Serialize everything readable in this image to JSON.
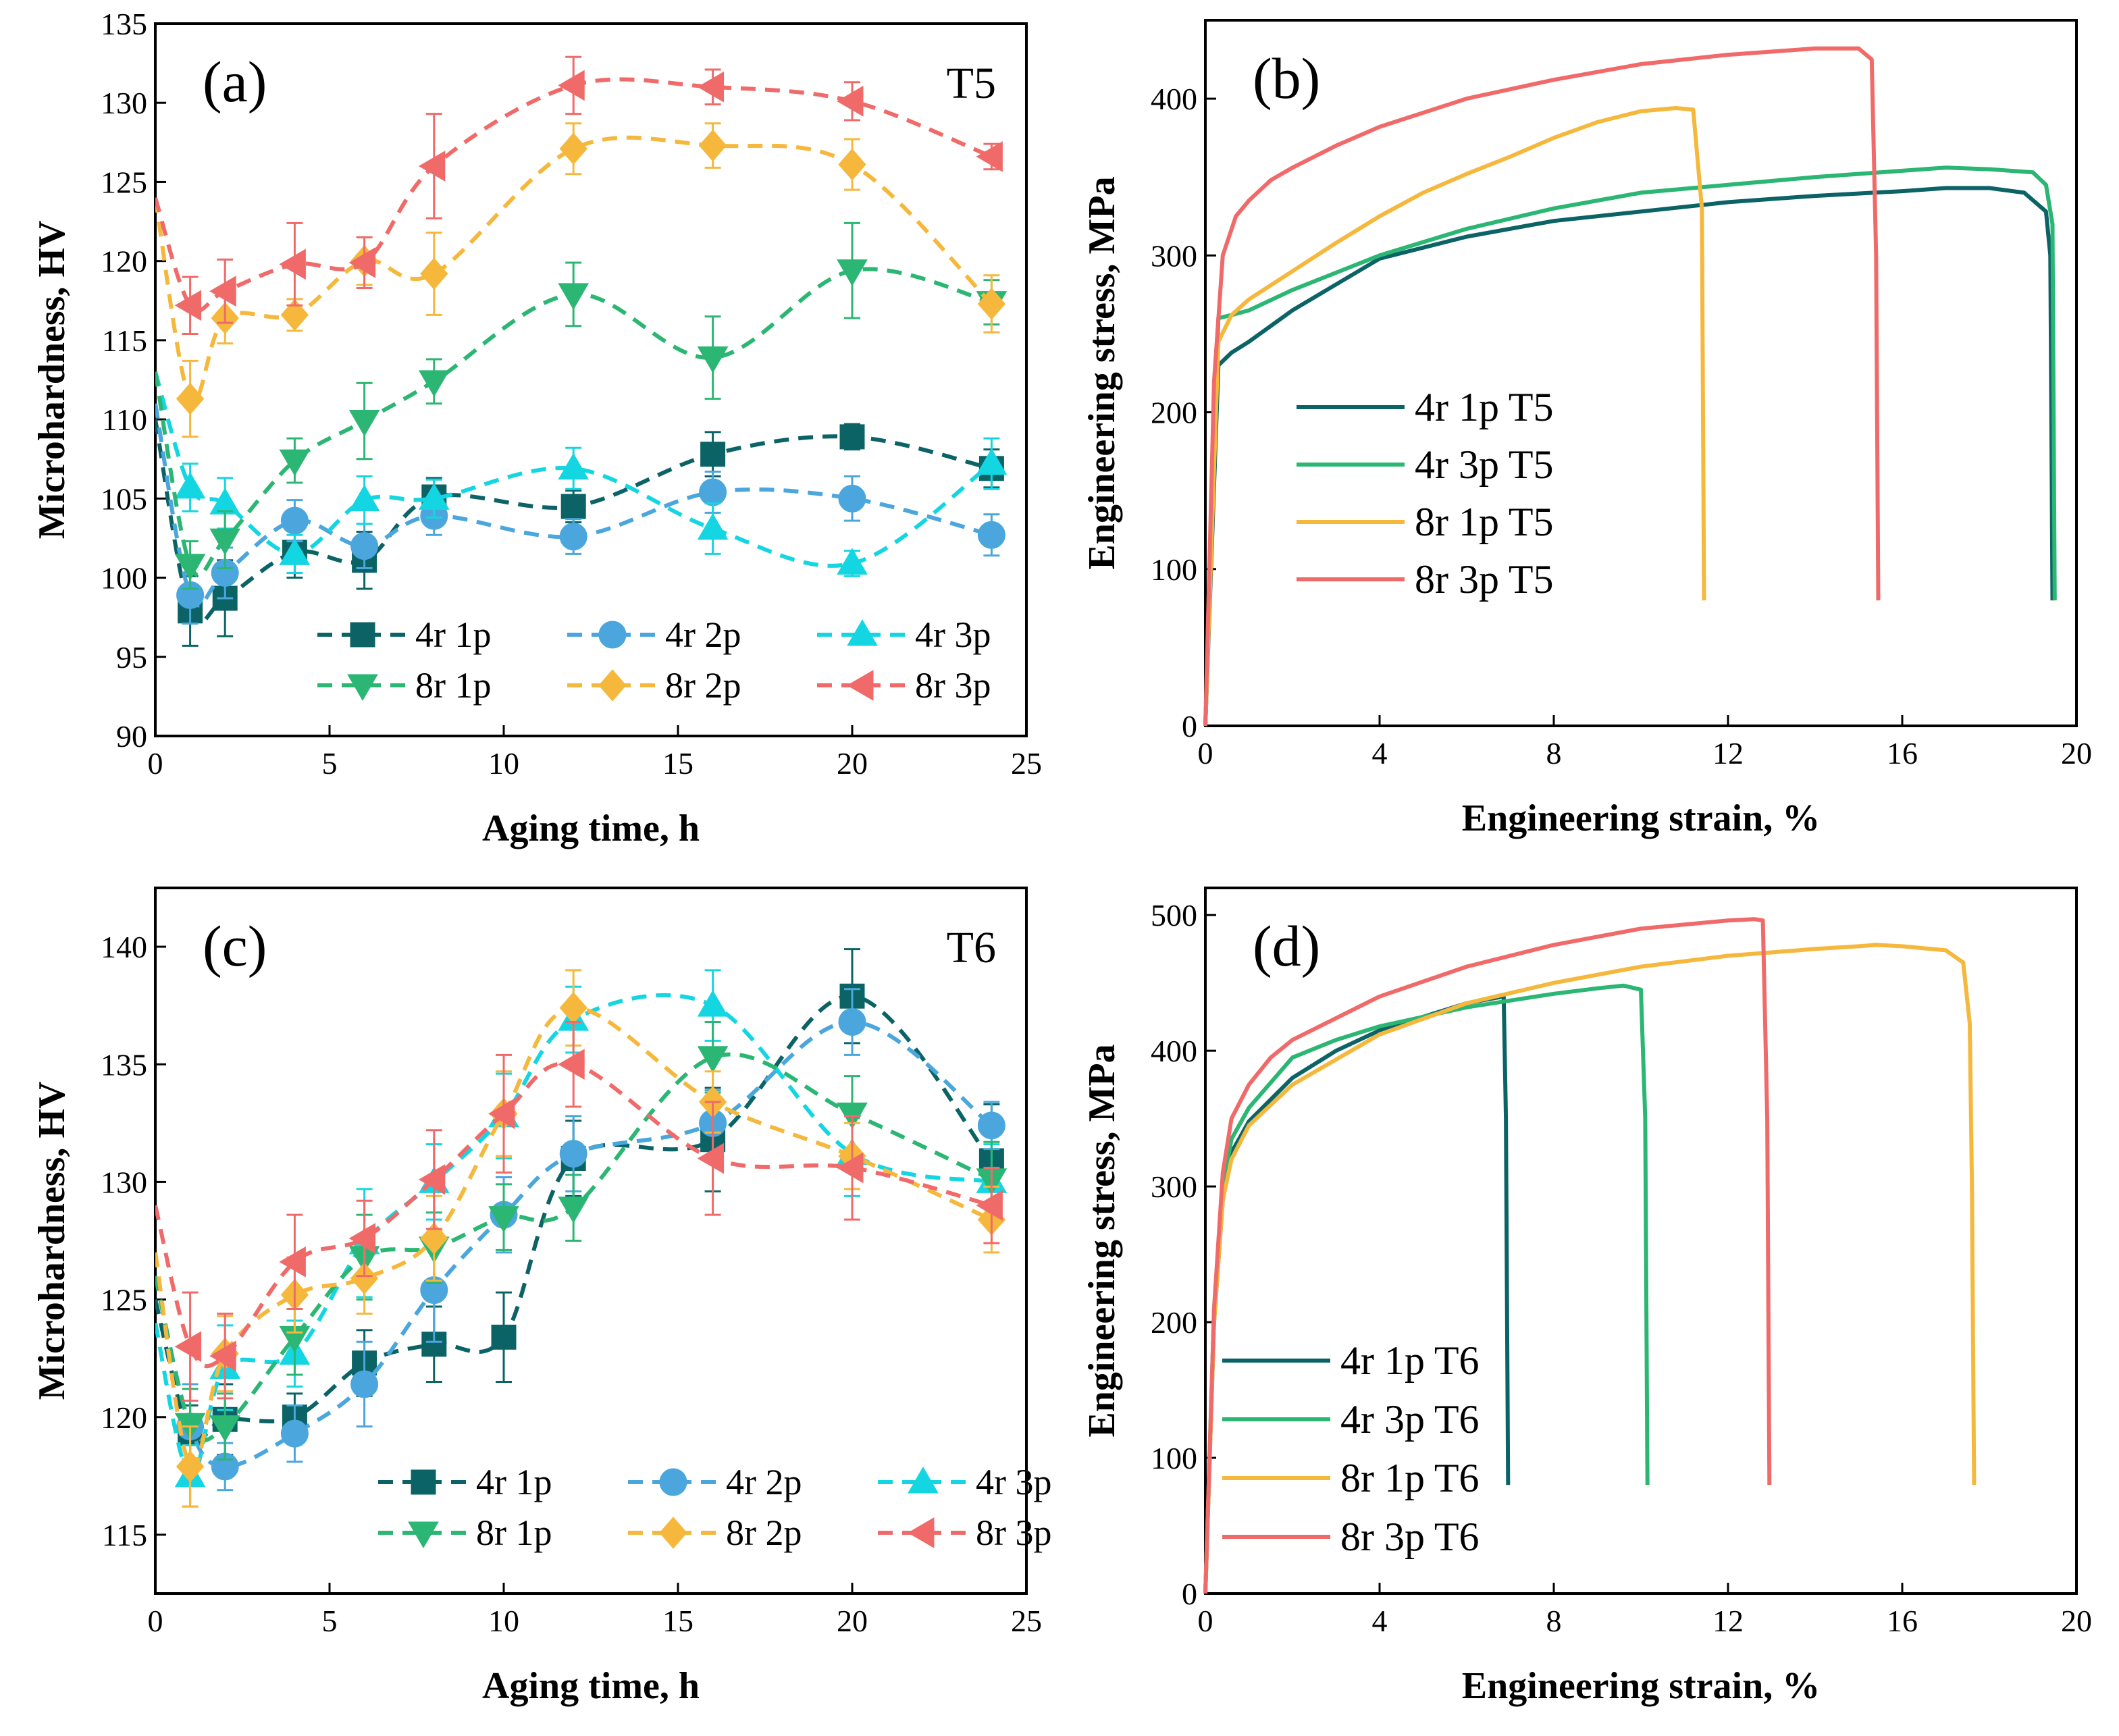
{
  "chart_data": [
    {
      "type": "line",
      "id": "a",
      "panel_label": "(a)",
      "condition": "T5",
      "xlabel": "Aging time, h",
      "ylabel": "Microhardness, HV",
      "xlim": [
        0,
        25
      ],
      "ylim": [
        90,
        135
      ],
      "xticks": [
        "0",
        "5",
        "10",
        "15",
        "20",
        "25"
      ],
      "yticks": [
        "90",
        "95",
        "100",
        "105",
        "110",
        "115",
        "120",
        "125",
        "130",
        "135"
      ],
      "x": [
        0,
        1,
        2,
        4,
        6,
        8,
        12,
        16,
        20,
        24
      ],
      "series": [
        {
          "name": "4r 1p",
          "color": "#0b6366",
          "marker": "square",
          "values": [
            110,
            97.9,
            98.7,
            101.6,
            101.1,
            105.1,
            104.5,
            107.8,
            108.9,
            106.9
          ],
          "err": [
            1.5,
            2.2,
            2.4,
            1.6,
            1.8,
            1.2,
            1.0,
            1.4,
            0.8,
            1.2
          ]
        },
        {
          "name": "4r 2p",
          "color": "#4aa6dc",
          "marker": "circle",
          "values": [
            111,
            98.9,
            100.3,
            103.6,
            102.0,
            103.9,
            102.6,
            105.4,
            105.0,
            102.7
          ],
          "err": [
            1.5,
            1.8,
            1.6,
            1.3,
            1.4,
            1.2,
            1.1,
            1.3,
            1.4,
            1.3
          ]
        },
        {
          "name": "4r 3p",
          "color": "#14d6e2",
          "marker": "triangle-up",
          "values": [
            113,
            105.7,
            104.7,
            101.5,
            104.9,
            105.0,
            106.9,
            103.1,
            100.9,
            107.2
          ],
          "err": [
            1.5,
            1.5,
            1.6,
            1.2,
            1.5,
            1.2,
            1.3,
            1.6,
            0.8,
            1.6
          ]
        },
        {
          "name": "8r 1p",
          "color": "#2bb673",
          "marker": "triangle-down",
          "values": [
            113,
            100.8,
            102.4,
            107.4,
            109.9,
            112.4,
            117.9,
            113.9,
            119.4,
            117.4
          ],
          "err": [
            1.5,
            1.5,
            1.8,
            1.4,
            2.4,
            1.4,
            2.0,
            2.6,
            3.0,
            1.4
          ]
        },
        {
          "name": "8r 2p",
          "color": "#f5b83d",
          "marker": "diamond",
          "values": [
            124,
            111.3,
            116.4,
            116.6,
            120.0,
            119.2,
            127.1,
            127.3,
            126.1,
            117.3
          ],
          "err": [
            1.5,
            2.4,
            1.6,
            1.0,
            1.5,
            2.6,
            1.6,
            1.4,
            1.6,
            1.8
          ]
        },
        {
          "name": "8r 3p",
          "color": "#f06a6a",
          "marker": "triangle-left",
          "values": [
            124,
            117.2,
            118.1,
            119.8,
            119.9,
            126.0,
            131.1,
            131.0,
            130.1,
            126.6
          ],
          "err": [
            1.5,
            1.8,
            2.0,
            2.6,
            1.6,
            3.3,
            1.8,
            1.1,
            1.2,
            0.8
          ]
        }
      ]
    },
    {
      "type": "line",
      "id": "b",
      "panel_label": "(b)",
      "xlabel": "Engineering strain, %",
      "ylabel": "Engineering stress, MPa",
      "xlim": [
        0,
        20
      ],
      "ylim": [
        0,
        450
      ],
      "xticks": [
        "0",
        "4",
        "8",
        "12",
        "16",
        "20"
      ],
      "yticks": [
        "0",
        "100",
        "200",
        "300",
        "400"
      ],
      "series": [
        {
          "name": "4r 1p T5",
          "color": "#0b6366",
          "x": [
            0,
            0.3,
            0.6,
            1,
            2,
            4,
            6,
            8,
            10,
            12,
            14,
            16,
            17,
            18,
            18.8,
            19.3,
            19.4,
            19.45
          ],
          "y": [
            0,
            230,
            238,
            245,
            265,
            298,
            312,
            322,
            328,
            334,
            338,
            341,
            343,
            343,
            340,
            328,
            300,
            80
          ]
        },
        {
          "name": "4r 3p T5",
          "color": "#2bb673",
          "x": [
            0,
            0.3,
            0.6,
            1,
            2,
            4,
            6,
            8,
            10,
            12,
            14,
            16,
            17,
            18,
            19,
            19.3,
            19.45,
            19.5
          ],
          "y": [
            0,
            260,
            262,
            265,
            278,
            300,
            317,
            330,
            340,
            345,
            350,
            354,
            356,
            355,
            353,
            345,
            320,
            80
          ]
        },
        {
          "name": "8r 1p T5",
          "color": "#f5b83d",
          "x": [
            0,
            0.3,
            0.6,
            1,
            2,
            3,
            4,
            5,
            6,
            7,
            8,
            9,
            10,
            10.8,
            11.2,
            11.4,
            11.45
          ],
          "y": [
            0,
            245,
            262,
            272,
            290,
            308,
            325,
            340,
            352,
            363,
            375,
            385,
            392,
            394,
            393,
            330,
            80
          ]
        },
        {
          "name": "8r 3p T5",
          "color": "#f06a6a",
          "x": [
            0,
            0.2,
            0.4,
            0.7,
            1,
            1.5,
            2,
            3,
            4,
            6,
            8,
            10,
            12,
            14,
            15,
            15.3,
            15.4,
            15.45
          ],
          "y": [
            0,
            220,
            300,
            325,
            335,
            348,
            356,
            370,
            382,
            400,
            412,
            422,
            428,
            432,
            432,
            425,
            300,
            80
          ]
        }
      ]
    },
    {
      "type": "line",
      "id": "c",
      "panel_label": "(c)",
      "condition": "T6",
      "xlabel": "Aging time, h",
      "ylabel": "Microhardness, HV",
      "xlim": [
        0,
        25
      ],
      "ylim": [
        112.5,
        142.5
      ],
      "xticks": [
        "0",
        "5",
        "10",
        "15",
        "20",
        "25"
      ],
      "yticks": [
        "115",
        "120",
        "125",
        "130",
        "135",
        "140"
      ],
      "x": [
        0,
        1,
        2,
        4,
        6,
        8,
        10,
        12,
        16,
        20,
        24
      ],
      "series": [
        {
          "name": "4r 1p",
          "color": "#0b6366",
          "marker": "square",
          "values": [
            125,
            119.3,
            119.9,
            120.0,
            122.3,
            123.1,
            123.4,
            131.0,
            131.8,
            137.9,
            130.9
          ],
          "err": [
            1.5,
            1.2,
            1.5,
            1.0,
            1.4,
            1.6,
            1.9,
            1.6,
            2.2,
            2.0,
            2.4
          ]
        },
        {
          "name": "4r 2p",
          "color": "#4aa6dc",
          "marker": "circle",
          "values": [
            126,
            119.6,
            117.9,
            119.3,
            121.4,
            125.4,
            128.6,
            131.2,
            132.5,
            136.8,
            132.4
          ],
          "err": [
            1.5,
            1.8,
            1.0,
            1.2,
            1.8,
            2.2,
            1.6,
            1.6,
            1.4,
            1.4,
            1.0
          ]
        },
        {
          "name": "4r 3p",
          "color": "#14d6e2",
          "marker": "triangle-up",
          "values": [
            124,
            117.5,
            122.1,
            122.7,
            127.4,
            130.0,
            132.8,
            136.9,
            137.5,
            131.2,
            130.0
          ],
          "err": [
            1.5,
            1.3,
            1.8,
            1.4,
            2.3,
            1.6,
            1.8,
            1.4,
            1.5,
            1.8,
            1.6
          ]
        },
        {
          "name": "8r 1p",
          "color": "#2bb673",
          "marker": "triangle-down",
          "values": [
            126,
            119.7,
            119.6,
            123.4,
            126.8,
            127.2,
            128.5,
            128.9,
            135.3,
            132.9,
            130.1
          ],
          "err": [
            1.5,
            1.5,
            1.4,
            1.6,
            1.8,
            1.5,
            1.4,
            1.4,
            1.5,
            1.6,
            1.6
          ]
        },
        {
          "name": "8r 2p",
          "color": "#f5b83d",
          "marker": "diamond",
          "values": [
            127,
            117.9,
            122.7,
            125.2,
            125.9,
            127.6,
            132.9,
            137.4,
            133.4,
            131.1,
            128.4
          ],
          "err": [
            1.5,
            1.7,
            1.6,
            1.6,
            1.5,
            1.8,
            1.8,
            1.6,
            1.3,
            1.4,
            1.4
          ]
        },
        {
          "name": "8r 3p",
          "color": "#f06a6a",
          "marker": "triangle-left",
          "values": [
            129,
            123.0,
            122.6,
            126.6,
            127.6,
            130.1,
            132.9,
            135.0,
            131.0,
            130.6,
            129.0
          ],
          "err": [
            2.2,
            2.3,
            1.8,
            2.0,
            1.6,
            2.1,
            2.5,
            1.8,
            2.4,
            2.2,
            1.6
          ]
        }
      ]
    },
    {
      "type": "line",
      "id": "d",
      "panel_label": "(d)",
      "xlabel": "Engineering strain, %",
      "ylabel": "Engineering stress, MPa",
      "xlim": [
        0,
        20
      ],
      "ylim": [
        0,
        520
      ],
      "xticks": [
        "0",
        "4",
        "8",
        "12",
        "16",
        "20"
      ],
      "yticks": [
        "0",
        "100",
        "200",
        "300",
        "400",
        "500"
      ],
      "series": [
        {
          "name": "4r 1p T6",
          "color": "#0b6366",
          "x": [
            0,
            0.2,
            0.4,
            0.6,
            1,
            2,
            3,
            4,
            5,
            6,
            6.5,
            6.85,
            6.9,
            6.95
          ],
          "y": [
            0,
            200,
            290,
            325,
            348,
            380,
            400,
            415,
            425,
            435,
            438,
            440,
            350,
            80
          ]
        },
        {
          "name": "4r 3p T6",
          "color": "#2bb673",
          "x": [
            0,
            0.2,
            0.4,
            0.6,
            1,
            2,
            3,
            4,
            5,
            6,
            7,
            8,
            9,
            9.6,
            10,
            10.1,
            10.15
          ],
          "y": [
            0,
            210,
            300,
            335,
            358,
            395,
            408,
            418,
            425,
            432,
            437,
            442,
            446,
            448,
            445,
            350,
            80
          ]
        },
        {
          "name": "8r 1p T6",
          "color": "#f5b83d",
          "x": [
            0,
            0.2,
            0.4,
            0.6,
            1,
            2,
            4,
            6,
            8,
            10,
            12,
            14,
            15,
            15.4,
            16,
            17,
            17.4,
            17.55,
            17.6,
            17.65
          ],
          "y": [
            0,
            200,
            290,
            320,
            345,
            375,
            412,
            435,
            450,
            462,
            470,
            475,
            477,
            478,
            477,
            474,
            465,
            420,
            300,
            80
          ]
        },
        {
          "name": "8r 3p T6",
          "color": "#f06a6a",
          "x": [
            0,
            0.2,
            0.4,
            0.6,
            1,
            1.5,
            2,
            4,
            6,
            8,
            10,
            12,
            12.6,
            12.8,
            12.9,
            12.95
          ],
          "y": [
            0,
            210,
            310,
            350,
            375,
            395,
            408,
            440,
            462,
            478,
            490,
            496,
            497,
            496,
            350,
            80
          ]
        }
      ]
    }
  ]
}
